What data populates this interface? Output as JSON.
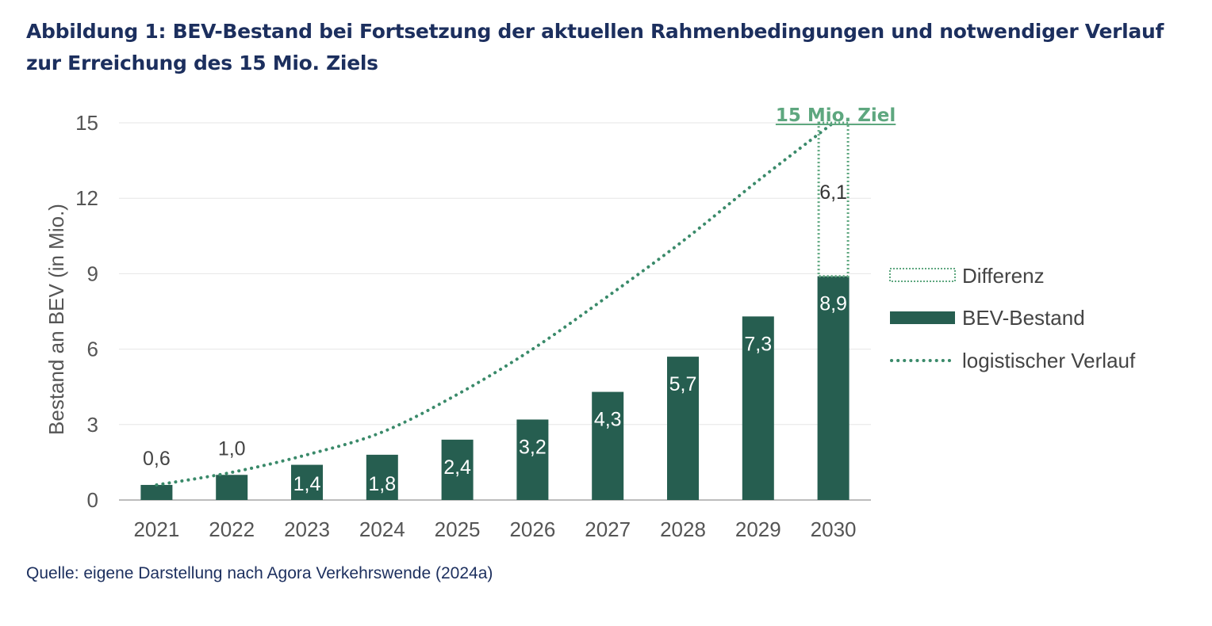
{
  "title": "Abbildung 1: BEV-Bestand bei Fortsetzung der aktuellen Rahmenbedingungen und notwendiger Verlauf zur Erreichung des 15 Mio. Ziels",
  "source": "Quelle: eigene Darstellung nach Agora Verkehrswende (2024a)",
  "colors": {
    "bar": "#265e50",
    "target": "#5ea77f",
    "curve": "#3a8a6a",
    "title": "#1c2f5e",
    "grid": "#e6e6e6",
    "axis": "#bdbdbd"
  },
  "chart_data": {
    "type": "bar",
    "categories": [
      "2021",
      "2022",
      "2023",
      "2024",
      "2025",
      "2026",
      "2027",
      "2028",
      "2029",
      "2030"
    ],
    "ylabel": "Bestand an BEV (in Mio.)",
    "ylim": [
      0,
      15
    ],
    "yticks": [
      0,
      3,
      6,
      9,
      12,
      15
    ],
    "grid": true,
    "legend_position": "right",
    "series": [
      {
        "name": "BEV-Bestand",
        "type": "bar",
        "values": [
          0.6,
          1.0,
          1.4,
          1.8,
          2.4,
          3.2,
          4.3,
          5.7,
          7.3,
          8.9
        ],
        "labels": [
          "0,6",
          "1,0",
          "1,4",
          "1,8",
          "2,4",
          "3,2",
          "4,3",
          "5,7",
          "7,3",
          "8,9"
        ]
      },
      {
        "name": "Differenz",
        "type": "stacked-outline",
        "category": "2030",
        "base": 8.9,
        "value": 6.1,
        "label": "6,1"
      },
      {
        "name": "logistischer Verlauf",
        "type": "dotted-line",
        "values": [
          0.6,
          1.1,
          1.8,
          2.7,
          4.2,
          6.0,
          8.1,
          10.3,
          12.7,
          15.0
        ]
      }
    ],
    "annotations": [
      {
        "text": "15 Mio. Ziel",
        "category": "2030",
        "y": 15
      }
    ]
  }
}
